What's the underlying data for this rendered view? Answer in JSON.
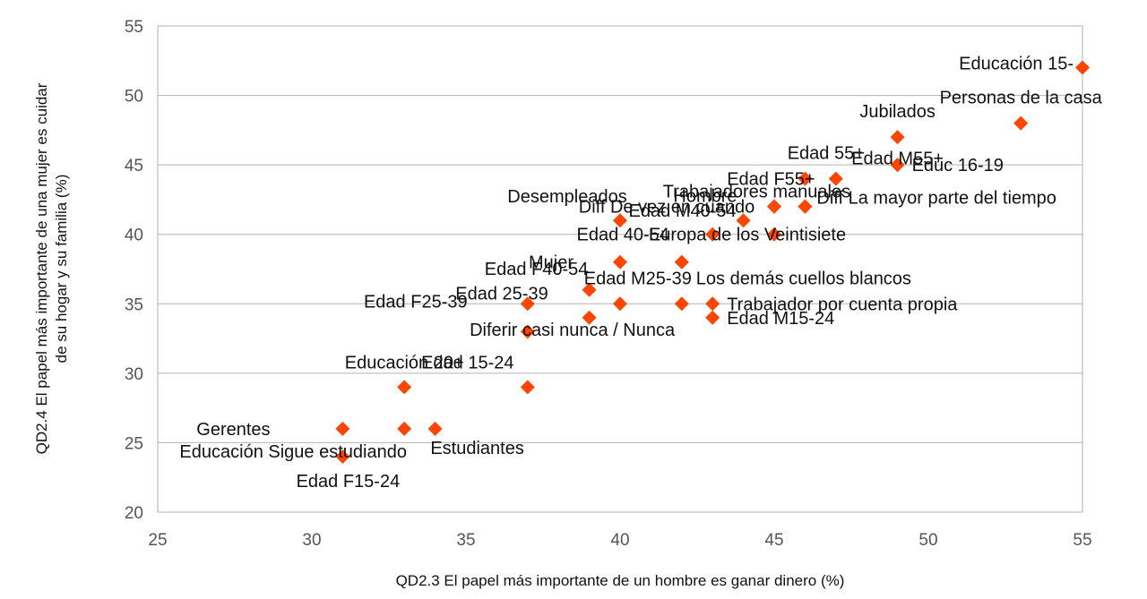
{
  "chart_data": {
    "type": "scatter",
    "title": "",
    "xlabel": "QD2.3 El papel más importante de un hombre es ganar dinero (%)",
    "ylabel_lines": [
      "QD2.4 El papel más importante de una mujer es cuidar",
      "de su hogar y su familia (%)"
    ],
    "xlim": [
      25,
      55
    ],
    "ylim": [
      20,
      55
    ],
    "xticks": [
      25,
      30,
      35,
      40,
      45,
      50,
      55
    ],
    "yticks": [
      20,
      25,
      30,
      35,
      40,
      45,
      50,
      55
    ],
    "grid": "horizontal",
    "marker": "diamond",
    "marker_color": "#ff4500",
    "points": [
      {
        "label": "Educación 15-",
        "x": 55,
        "y": 52
      },
      {
        "label": "Personas de la casa",
        "x": 53,
        "y": 48
      },
      {
        "label": "Jubilados",
        "x": 49,
        "y": 47
      },
      {
        "label": "Edad M55+",
        "x": 49,
        "y": 45
      },
      {
        "label": "Edad 55+",
        "x": 47,
        "y": 44
      },
      {
        "label": "Edad F55+",
        "x": 46,
        "y": 44
      },
      {
        "label": "Educ 16-19",
        "x": 49,
        "y": 45
      },
      {
        "label": "Diff De vez en cuando",
        "x": 45,
        "y": 42
      },
      {
        "label": "Trabajadores manuales",
        "x": 46,
        "y": 42
      },
      {
        "label": "Desempleados",
        "x": 40,
        "y": 41
      },
      {
        "label": "Edad M40-54",
        "x": 44,
        "y": 41
      },
      {
        "label": "Hombre",
        "x": 45,
        "y": 42
      },
      {
        "label": "Diff La mayor parte del tiempo",
        "x": 46,
        "y": 42
      },
      {
        "label": "Edad 40-54",
        "x": 43,
        "y": 40
      },
      {
        "label": "Europa de los Veintisiete",
        "x": 45,
        "y": 40
      },
      {
        "label": "Mujer",
        "x": 40,
        "y": 38
      },
      {
        "label": "Edad F40-54",
        "x": 39,
        "y": 36
      },
      {
        "label": "Los demás cuellos blancos",
        "x": 42,
        "y": 38
      },
      {
        "label": "Edad M25-39",
        "x": 42,
        "y": 38
      },
      {
        "label": "Edad 25-39",
        "x": 40,
        "y": 35
      },
      {
        "label": "Edad F25-39",
        "x": 37,
        "y": 35
      },
      {
        "label": "Trabajador por cuenta propia",
        "x": 43,
        "y": 35
      },
      {
        "label": "Edad M15-24",
        "x": 43,
        "y": 34
      },
      {
        "label": "Diferir casi nunca / Nunca",
        "x": 39,
        "y": 34
      },
      {
        "label": "",
        "x": 37,
        "y": 33
      },
      {
        "label": "",
        "x": 42,
        "y": 35
      },
      {
        "label": "Educación 20+",
        "x": 33,
        "y": 29
      },
      {
        "label": "Edad 15-24",
        "x": 37,
        "y": 29
      },
      {
        "label": "Educación Sigue estudiando",
        "x": 33,
        "y": 26
      },
      {
        "label": "Gerentes",
        "x": 31,
        "y": 26
      },
      {
        "label": "Estudiantes",
        "x": 34,
        "y": 26
      },
      {
        "label": "Edad F15-24",
        "x": 31,
        "y": 24
      }
    ]
  }
}
